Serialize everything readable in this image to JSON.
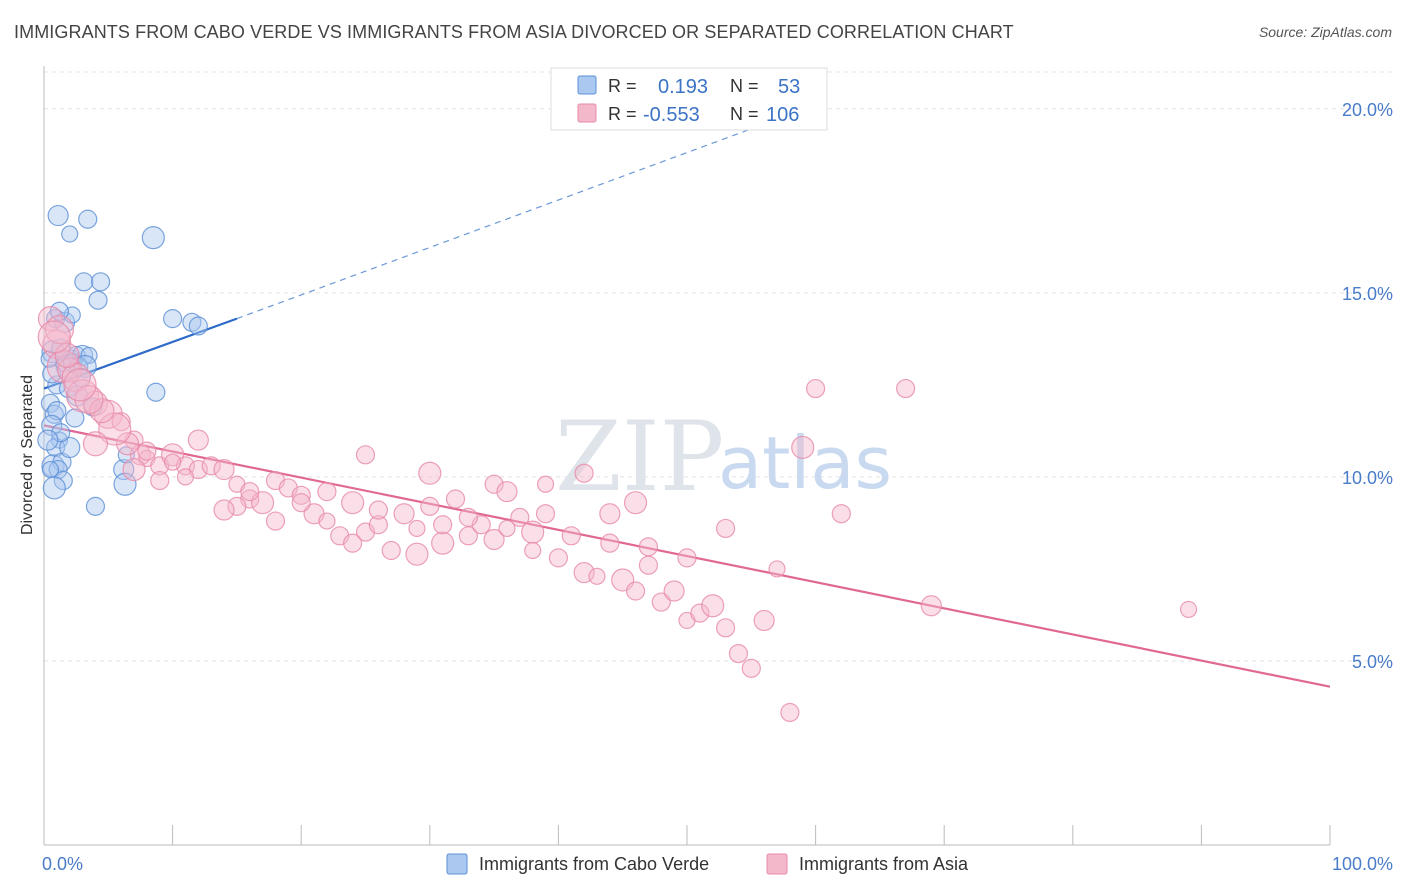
{
  "title": "IMMIGRANTS FROM CABO VERDE VS IMMIGRANTS FROM ASIA DIVORCED OR SEPARATED CORRELATION CHART",
  "source": "Source: ZipAtlas.com",
  "watermark": {
    "zip": "ZIP",
    "atlas": "atlas"
  },
  "colors": {
    "blue": "#5b8fd6",
    "blue_fill": "#aac8f0",
    "blue_line": "#2e6bc9",
    "pink": "#e78aa8",
    "pink_fill": "#f4b8cb",
    "pink_line": "#e06893",
    "grid": "#e3e3e3",
    "tick_text": "#4a7cc9"
  },
  "chart_data": {
    "type": "scatter",
    "xlabel": "",
    "ylabel": "Divorced or Separated",
    "xlim": [
      0,
      100
    ],
    "ylim": [
      0,
      21
    ],
    "x_tick_labels": [
      "0.0%",
      "100.0%"
    ],
    "y_ticks": [
      5,
      10,
      15,
      20
    ],
    "y_tick_labels": [
      "5.0%",
      "10.0%",
      "15.0%",
      "20.0%"
    ],
    "grid": true,
    "legend": {
      "position": "top-center",
      "rows": [
        {
          "r_label": "R =",
          "r_value": "0.193",
          "n_label": "N =",
          "n_value": "53"
        },
        {
          "r_label": "R =",
          "r_value": "-0.553",
          "n_label": "N =",
          "n_value": "106"
        }
      ]
    },
    "series": [
      {
        "name": "Immigrants from Cabo Verde",
        "color": "blue",
        "trend": {
          "x0": 0,
          "y0": 12.4,
          "x1": 15,
          "y1": 14.3,
          "dash_to_x": 60,
          "dash_to_y": 20.1
        },
        "points": [
          [
            0.5,
            12.0
          ],
          [
            0.8,
            11.7
          ],
          [
            1.0,
            11.8
          ],
          [
            0.6,
            11.4
          ],
          [
            1.2,
            11.0
          ],
          [
            0.9,
            10.8
          ],
          [
            0.7,
            10.3
          ],
          [
            1.4,
            10.4
          ],
          [
            1.1,
            10.2
          ],
          [
            1.5,
            9.9
          ],
          [
            2.0,
            10.8
          ],
          [
            0.5,
            10.2
          ],
          [
            1.0,
            12.5
          ],
          [
            0.7,
            13.4
          ],
          [
            1.6,
            13.1
          ],
          [
            2.1,
            13.2
          ],
          [
            2.5,
            13.3
          ],
          [
            3.0,
            13.3
          ],
          [
            3.5,
            13.3
          ],
          [
            1.3,
            13.5
          ],
          [
            1.8,
            13.0
          ],
          [
            2.2,
            13.1
          ],
          [
            2.7,
            13.0
          ],
          [
            0.9,
            14.3
          ],
          [
            1.6,
            14.2
          ],
          [
            2.2,
            14.4
          ],
          [
            1.2,
            14.5
          ],
          [
            3.2,
            13.0
          ],
          [
            3.1,
            15.3
          ],
          [
            4.2,
            14.8
          ],
          [
            4.4,
            15.3
          ],
          [
            1.1,
            17.1
          ],
          [
            2.0,
            16.6
          ],
          [
            3.4,
            17.0
          ],
          [
            8.5,
            16.5
          ],
          [
            10.0,
            14.3
          ],
          [
            11.5,
            14.2
          ],
          [
            12.0,
            14.1
          ],
          [
            6.2,
            10.2
          ],
          [
            6.4,
            10.6
          ],
          [
            8.7,
            12.3
          ],
          [
            6.3,
            9.8
          ],
          [
            4.0,
            9.2
          ],
          [
            0.6,
            12.8
          ],
          [
            1.9,
            12.4
          ],
          [
            2.6,
            12.2
          ],
          [
            0.4,
            13.2
          ],
          [
            2.9,
            12.7
          ],
          [
            0.8,
            9.7
          ],
          [
            1.3,
            11.2
          ],
          [
            2.4,
            11.6
          ],
          [
            3.8,
            11.9
          ],
          [
            0.3,
            11.0
          ]
        ]
      },
      {
        "name": "Immigrants from Asia",
        "color": "pink",
        "trend": {
          "x0": 0,
          "y0": 11.4,
          "x1": 100,
          "y1": 4.3
        },
        "points": [
          [
            0.5,
            14.3
          ],
          [
            1.0,
            13.6
          ],
          [
            1.5,
            13.0
          ],
          [
            2.0,
            12.9
          ],
          [
            2.5,
            12.7
          ],
          [
            3.0,
            12.2
          ],
          [
            4.0,
            12.0
          ],
          [
            5.0,
            11.7
          ],
          [
            6.0,
            11.5
          ],
          [
            7.0,
            11.0
          ],
          [
            7.5,
            10.6
          ],
          [
            8.0,
            10.5
          ],
          [
            9.0,
            10.3
          ],
          [
            10.0,
            10.6
          ],
          [
            11.0,
            10.3
          ],
          [
            12.0,
            10.2
          ],
          [
            13.0,
            10.3
          ],
          [
            14.0,
            10.2
          ],
          [
            15.0,
            9.8
          ],
          [
            16.0,
            9.4
          ],
          [
            17.0,
            9.3
          ],
          [
            18.0,
            9.9
          ],
          [
            19.0,
            9.7
          ],
          [
            20.0,
            9.5
          ],
          [
            21.0,
            9.0
          ],
          [
            22.0,
            8.8
          ],
          [
            23.0,
            8.4
          ],
          [
            24.0,
            9.3
          ],
          [
            25.0,
            8.5
          ],
          [
            26.0,
            8.7
          ],
          [
            27.0,
            8.0
          ],
          [
            28.0,
            9.0
          ],
          [
            29.0,
            8.6
          ],
          [
            30.0,
            9.2
          ],
          [
            31.0,
            8.2
          ],
          [
            32.0,
            9.4
          ],
          [
            33.0,
            8.4
          ],
          [
            34.0,
            8.7
          ],
          [
            35.0,
            8.3
          ],
          [
            36.0,
            8.6
          ],
          [
            37.0,
            8.9
          ],
          [
            38.0,
            8.5
          ],
          [
            39.0,
            9.0
          ],
          [
            40.0,
            7.8
          ],
          [
            41.0,
            8.4
          ],
          [
            42.0,
            7.4
          ],
          [
            43.0,
            7.3
          ],
          [
            44.0,
            8.2
          ],
          [
            45.0,
            7.2
          ],
          [
            46.0,
            6.9
          ],
          [
            47.0,
            7.6
          ],
          [
            48.0,
            6.6
          ],
          [
            49.0,
            6.9
          ],
          [
            50.0,
            6.1
          ],
          [
            51.0,
            6.3
          ],
          [
            52.0,
            6.5
          ],
          [
            53.0,
            5.9
          ],
          [
            54.0,
            5.2
          ],
          [
            55.0,
            4.8
          ],
          [
            56.0,
            6.1
          ],
          [
            57.0,
            7.5
          ],
          [
            58.0,
            3.6
          ],
          [
            59.0,
            10.8
          ],
          [
            60.0,
            12.4
          ],
          [
            62.0,
            9.0
          ],
          [
            67.0,
            12.4
          ],
          [
            69.0,
            6.5
          ],
          [
            89.0,
            6.4
          ],
          [
            35.0,
            9.8
          ],
          [
            30.0,
            10.1
          ],
          [
            25.0,
            10.6
          ],
          [
            20.0,
            9.3
          ],
          [
            15.0,
            9.2
          ],
          [
            12.0,
            11.0
          ],
          [
            10.0,
            10.4
          ],
          [
            8.0,
            10.7
          ],
          [
            6.5,
            10.9
          ],
          [
            5.5,
            11.3
          ],
          [
            4.5,
            11.8
          ],
          [
            3.5,
            12.1
          ],
          [
            2.8,
            12.5
          ],
          [
            1.8,
            13.3
          ],
          [
            1.2,
            14.0
          ],
          [
            0.8,
            13.8
          ],
          [
            22.0,
            9.6
          ],
          [
            26.0,
            9.1
          ],
          [
            31.0,
            8.7
          ],
          [
            36.0,
            9.6
          ],
          [
            39.0,
            9.8
          ],
          [
            42.0,
            10.1
          ],
          [
            46.0,
            9.3
          ],
          [
            50.0,
            7.8
          ],
          [
            53.0,
            8.6
          ],
          [
            47.0,
            8.1
          ],
          [
            44.0,
            9.0
          ],
          [
            38.0,
            8.0
          ],
          [
            33.0,
            8.9
          ],
          [
            29.0,
            7.9
          ],
          [
            24.0,
            8.2
          ],
          [
            18.0,
            8.8
          ],
          [
            16.0,
            9.6
          ],
          [
            14.0,
            9.1
          ],
          [
            11.0,
            10.0
          ],
          [
            9.0,
            9.9
          ],
          [
            7.0,
            10.2
          ],
          [
            4.0,
            10.9
          ]
        ]
      }
    ]
  }
}
